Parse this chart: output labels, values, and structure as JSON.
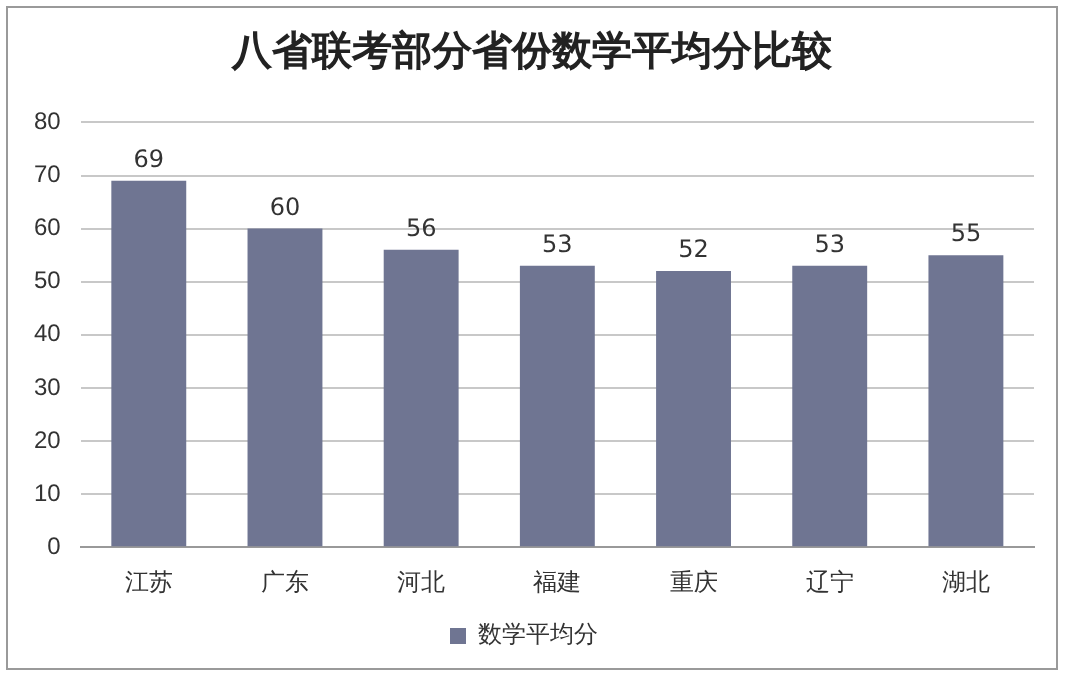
{
  "chart_data": {
    "type": "bar",
    "title": "八省联考部分省份数学平均分比较",
    "categories": [
      "江苏",
      "广东",
      "河北",
      "福建",
      "重庆",
      "辽宁",
      "湖北"
    ],
    "series": [
      {
        "name": "数学平均分",
        "color": "#6f7592",
        "values": [
          69,
          60,
          56,
          53,
          52,
          53,
          55
        ]
      }
    ],
    "ylim": [
      0,
      80
    ],
    "yticks": [
      0,
      10,
      20,
      30,
      40,
      50,
      60,
      70,
      80
    ],
    "grid": "y",
    "legend": "bottom",
    "data_labels": true
  }
}
